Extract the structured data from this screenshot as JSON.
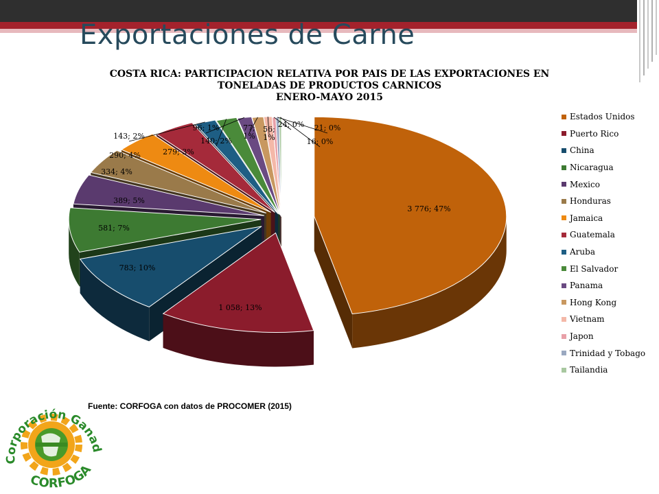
{
  "slide": {
    "title": "Exportaciones de Carne",
    "source": "Fuente: CORFOGA con datos de PROCOMER (2015)"
  },
  "logo": {
    "top_text": "Corporación Ganadera",
    "bottom_text": "CORFOGA"
  },
  "colors": {
    "topbar": "#2f2f2f",
    "accent_red": "#a4222c",
    "title_blue": "#274a5c"
  },
  "chart_data": {
    "type": "pie",
    "style": "3d-exploded",
    "title_lines": [
      "COSTA RICA: PARTICIPACION RELATIVA POR PAIS DE LAS EXPORTACIONES EN",
      "TONELADAS DE PRODUCTOS CARNICOS",
      "ENERO-MAYO 2015"
    ],
    "legend_position": "right",
    "slices": [
      {
        "name": "Estados Unidos",
        "value": 3776,
        "label": "3 776; 47%",
        "color": "#c0620a"
      },
      {
        "name": "Puerto Rico",
        "value": 1058,
        "label": "1 058; 13%",
        "color": "#8b1c2c"
      },
      {
        "name": "China",
        "value": 783,
        "label": "783; 10%",
        "color": "#174d6d"
      },
      {
        "name": "Nicaragua",
        "value": 581,
        "label": "581; 7%",
        "color": "#3d7a32"
      },
      {
        "name": "Mexico",
        "value": 389,
        "label": "389; 5%",
        "color": "#5a3a6e"
      },
      {
        "name": "Honduras",
        "value": 334,
        "label": "334; 4%",
        "color": "#9a7a4a"
      },
      {
        "name": "Jamaica",
        "value": 290,
        "label": "290; 4%",
        "color": "#ee8a12"
      },
      {
        "name": "Guatemala",
        "value": 279,
        "label": "279; 3%",
        "color": "#a52a3a"
      },
      {
        "name": "Aruba",
        "value": 143,
        "label": "143; 2%",
        "color": "#1e5e84"
      },
      {
        "name": "El Salvador",
        "value": 140,
        "label": "140; 2%",
        "color": "#4a8a3a"
      },
      {
        "name": "Panama",
        "value": 96,
        "label": "96; 1%",
        "color": "#6a4a82"
      },
      {
        "name": "Hong Kong",
        "value": 77,
        "label": "77;\n1%",
        "color": "#c89860"
      },
      {
        "name": "Vietnam",
        "value": 56,
        "label": "56;\n1%",
        "color": "#f4b8a8"
      },
      {
        "name": "Japon",
        "value": 24,
        "label": "24; 0%",
        "color": "#e8a0a8"
      },
      {
        "name": "Trinidad y Tobago",
        "value": 21,
        "label": "21; 0%",
        "color": "#9aa8c0"
      },
      {
        "name": "Tailandia",
        "value": 16,
        "label": "16; 0%",
        "color": "#a8c8a0"
      }
    ]
  }
}
